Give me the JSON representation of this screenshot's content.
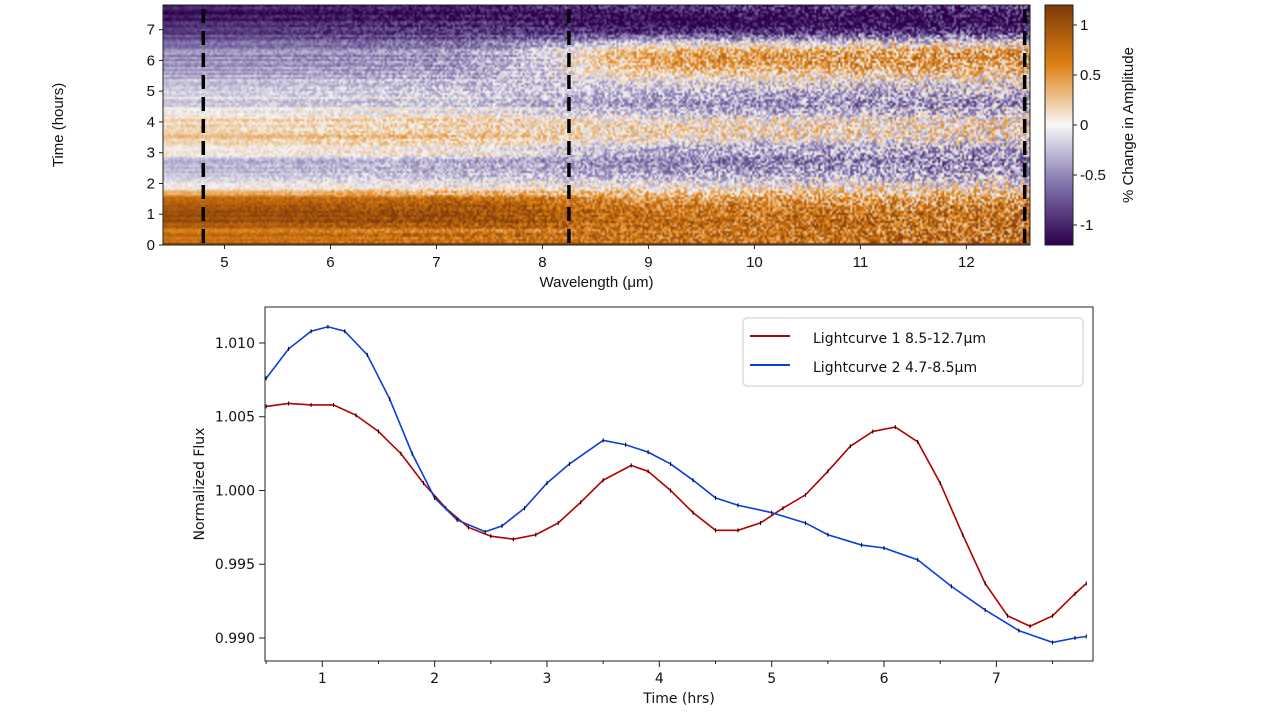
{
  "chart_data": [
    {
      "type": "heatmap",
      "xlabel": "Wavelength (μm)",
      "ylabel": "Time (hours)",
      "xlim": [
        4.42,
        12.6
      ],
      "ylim": [
        0,
        7.8
      ],
      "xticks": [
        5,
        6,
        7,
        8,
        9,
        10,
        11,
        12
      ],
      "yticks": [
        0,
        1,
        2,
        3,
        4,
        5,
        6,
        7
      ],
      "dashed_lines_x": [
        4.8,
        8.25,
        12.55
      ],
      "colorbar": {
        "label": "% Change in Amplitude",
        "range": [
          -1.2,
          1.2
        ],
        "ticks": [
          1,
          0.5,
          0,
          -0.5,
          -1
        ],
        "tick_labels": [
          "1",
          "0.5",
          "0",
          "-0.5",
          "-1"
        ],
        "colormap": [
          "#2d004b",
          "#8073ac",
          "#f7f7f7",
          "#e08214",
          "#7f3b08"
        ]
      }
    },
    {
      "type": "line",
      "xlabel": "Time (hrs)",
      "ylabel": "Normalized Flux",
      "xlim": [
        0.49,
        7.86
      ],
      "ylim": [
        0.98844,
        1.01244
      ],
      "xticks": [
        1,
        2,
        3,
        4,
        5,
        6,
        7
      ],
      "yticks": [
        0.99,
        0.995,
        1.0,
        1.005,
        1.01
      ],
      "ytick_labels": [
        "0.990",
        "0.995",
        "1.000",
        "1.005",
        "1.010"
      ],
      "legend": "top-right",
      "series": [
        {
          "name": "Lightcurve 1 8.5-12.7μm",
          "color": "#b00000",
          "x": [
            0.5,
            0.7,
            0.9,
            1.1,
            1.3,
            1.5,
            1.7,
            1.9,
            2.1,
            2.3,
            2.5,
            2.7,
            2.9,
            3.1,
            3.3,
            3.5,
            3.75,
            3.9,
            4.1,
            4.3,
            4.5,
            4.7,
            4.9,
            5.1,
            5.3,
            5.5,
            5.7,
            5.9,
            6.1,
            6.3,
            6.5,
            6.7,
            6.9,
            7.1,
            7.3,
            7.5,
            7.7,
            7.8
          ],
          "y": [
            1.0057,
            1.0059,
            1.0058,
            1.0058,
            1.0051,
            1.004,
            1.0025,
            1.0005,
            0.9988,
            0.9975,
            0.9969,
            0.9967,
            0.997,
            0.9978,
            0.9992,
            1.0007,
            1.0017,
            1.0013,
            1.0,
            0.9985,
            0.9973,
            0.9973,
            0.9978,
            0.9988,
            0.9997,
            1.0013,
            1.003,
            1.004,
            1.0043,
            1.0033,
            1.0005,
            0.997,
            0.9937,
            0.9915,
            0.9908,
            0.9915,
            0.993,
            0.9937
          ]
        },
        {
          "name": "Lightcurve 2 4.7-8.5μm",
          "color": "#0a3fd8",
          "x": [
            0.5,
            0.7,
            0.9,
            1.05,
            1.2,
            1.4,
            1.6,
            1.8,
            2.0,
            2.2,
            2.45,
            2.6,
            2.8,
            3.0,
            3.2,
            3.5,
            3.7,
            3.9,
            4.1,
            4.3,
            4.5,
            4.7,
            5.0,
            5.3,
            5.5,
            5.8,
            6.0,
            6.3,
            6.6,
            6.9,
            7.2,
            7.5,
            7.7,
            7.8
          ],
          "y": [
            1.0076,
            1.0096,
            1.0108,
            1.0111,
            1.0108,
            1.0092,
            1.0062,
            1.0025,
            0.9995,
            0.998,
            0.9972,
            0.9976,
            0.9988,
            1.0005,
            1.0018,
            1.0034,
            1.0031,
            1.0026,
            1.0018,
            1.0007,
            0.9995,
            0.999,
            0.9985,
            0.9978,
            0.997,
            0.9963,
            0.9961,
            0.9953,
            0.9935,
            0.9919,
            0.9905,
            0.9897,
            0.99,
            0.9901
          ]
        }
      ]
    }
  ]
}
